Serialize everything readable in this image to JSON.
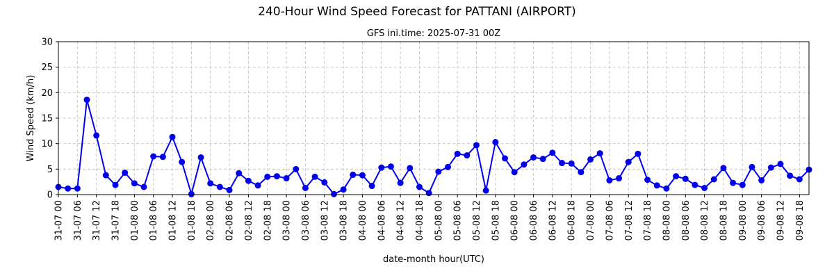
{
  "chart_data": {
    "type": "line",
    "title": "240-Hour Wind Speed Forecast for PATTANI (AIRPORT)",
    "subtitle": "GFS ini.time: 2025-07-31 00Z",
    "xlabel": "date-month hour(UTC)",
    "ylabel": "Wind Speed (km/h)",
    "ylim": [
      0,
      30
    ],
    "yticks": [
      0,
      5,
      10,
      15,
      20,
      25,
      30
    ],
    "grid": true,
    "line_color": "#0000ee",
    "x_step_hours": 3,
    "xticks": [
      "31-07 00",
      "31-07 06",
      "31-07 12",
      "31-07 18",
      "01-08 00",
      "01-08 06",
      "01-08 12",
      "01-08 18",
      "02-08 00",
      "02-08 06",
      "02-08 12",
      "02-08 18",
      "03-08 00",
      "03-08 06",
      "03-08 12",
      "03-08 18",
      "04-08 00",
      "04-08 06",
      "04-08 12",
      "04-08 18",
      "05-08 00",
      "05-08 06",
      "05-08 12",
      "05-08 18",
      "06-08 00",
      "06-08 06",
      "06-08 12",
      "06-08 18",
      "07-08 00",
      "07-08 06",
      "07-08 12",
      "07-08 18",
      "08-08 00",
      "08-08 06",
      "08-08 12",
      "08-08 18",
      "09-08 00",
      "09-08 06",
      "09-08 12",
      "09-08 18"
    ],
    "series": [
      {
        "values": [
          1.5,
          1.2,
          1.2,
          18.6,
          11.6,
          3.8,
          1.9,
          4.3,
          2.2,
          1.5,
          7.5,
          7.4,
          11.3,
          6.4,
          0.1,
          7.3,
          2.2,
          1.5,
          0.9,
          4.2,
          2.7,
          1.8,
          3.5,
          3.6,
          3.2,
          5.0,
          1.3,
          3.5,
          2.4,
          0.1,
          1.0,
          3.9,
          3.8,
          1.7,
          5.3,
          5.5,
          2.3,
          5.2,
          1.5,
          0.3,
          4.5,
          5.4,
          8.0,
          7.7,
          9.7,
          0.8,
          10.3,
          7.1,
          4.4,
          5.9,
          7.3,
          7.0,
          8.2,
          6.2,
          6.1,
          4.4,
          6.9,
          8.1,
          2.8,
          3.2,
          6.4,
          8.0,
          2.9,
          1.8,
          1.2,
          3.6,
          3.1,
          1.9,
          1.3,
          3.0,
          5.2,
          2.3,
          1.9,
          5.4,
          2.8,
          5.3,
          6.0,
          3.7,
          3.0,
          4.9
        ]
      }
    ]
  }
}
